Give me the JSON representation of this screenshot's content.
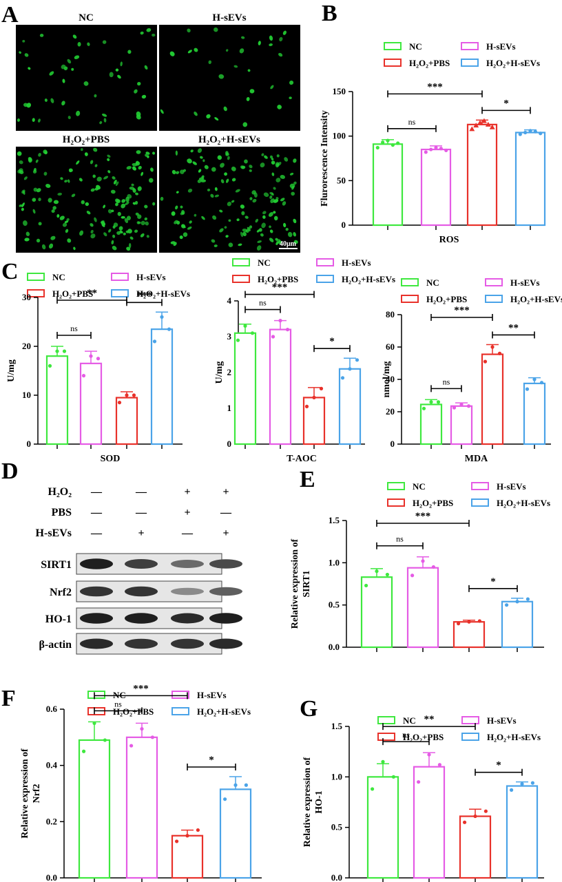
{
  "panel_letters": [
    "A",
    "B",
    "C",
    "D",
    "E",
    "F",
    "G"
  ],
  "colors": {
    "NC": "#3EE83E",
    "H-sEVs": "#E55BE5",
    "H2O2+PBS": "#E8312A",
    "H2O2+H-sEVs": "#4AA3E8",
    "cell": "#22cc33"
  },
  "legend": [
    {
      "key": "NC",
      "label": "NC"
    },
    {
      "key": "H-sEVs",
      "label": "H-sEVs"
    },
    {
      "key": "H2O2+PBS",
      "label": "H₂O₂+PBS"
    },
    {
      "key": "H2O2+H-sEVs",
      "label": "H₂O₂+H-sEVs"
    }
  ],
  "panel_a": {
    "labels": [
      "NC",
      "H-sEVs",
      "H₂O₂+PBS",
      "H₂O₂+H-sEVs"
    ],
    "scale_bar": "40μm"
  },
  "panel_d": {
    "conditions": [
      {
        "label": "H₂O₂",
        "signs": [
          "—",
          "—",
          "+",
          "+"
        ]
      },
      {
        "label": "PBS",
        "signs": [
          "—",
          "—",
          "+",
          "—"
        ]
      },
      {
        "label": "H-sEVs",
        "signs": [
          "—",
          "+",
          "—",
          "+"
        ]
      }
    ],
    "bands": [
      {
        "label": "SIRT1",
        "intensity": [
          0.95,
          0.8,
          0.6,
          0.75
        ]
      },
      {
        "label": "Nrf2",
        "intensity": [
          0.85,
          0.85,
          0.45,
          0.65
        ]
      },
      {
        "label": "HO-1",
        "intensity": [
          0.95,
          0.95,
          0.9,
          0.95
        ]
      },
      {
        "label": "β-actin",
        "intensity": [
          0.9,
          0.85,
          0.85,
          0.9
        ]
      }
    ]
  },
  "chart_data": [
    {
      "panel": "B",
      "type": "bar",
      "categories": [
        "NC",
        "H-sEVs",
        "H2O2+PBS",
        "H2O2+H-sEVs"
      ],
      "xlabel": "ROS",
      "ylabel": "Flurorescence Intensity",
      "ylim": [
        0,
        150
      ],
      "yticks": [
        "0",
        "50",
        "100",
        "150"
      ],
      "values": [
        91,
        85,
        113,
        104
      ],
      "errors": [
        5,
        4,
        5,
        3
      ],
      "points": [
        [
          87,
          93,
          95,
          90,
          92
        ],
        [
          82,
          85,
          87,
          86,
          84
        ],
        [
          108,
          112,
          115,
          117,
          113,
          110
        ],
        [
          102,
          104,
          106,
          105,
          103
        ]
      ],
      "significance": [
        {
          "from": 0,
          "to": 1,
          "label": "ns"
        },
        {
          "from": 0,
          "to": 2,
          "label": "***"
        },
        {
          "from": 2,
          "to": 3,
          "label": "*"
        }
      ]
    },
    {
      "panel": "C1",
      "type": "bar",
      "categories": [
        "NC",
        "H-sEVs",
        "H2O2+PBS",
        "H2O2+H-sEVs"
      ],
      "xlabel": "SOD",
      "ylabel": "U/mg",
      "ylim": [
        0,
        30
      ],
      "yticks": [
        "0",
        "10",
        "20",
        "30"
      ],
      "values": [
        18,
        16.5,
        9.5,
        23.5
      ],
      "errors": [
        2,
        2.5,
        1.2,
        3.5
      ],
      "points": [
        [
          16,
          19,
          19
        ],
        [
          14,
          18,
          17.5
        ],
        [
          8.5,
          10,
          10
        ],
        [
          21,
          26,
          23.5
        ]
      ],
      "significance": [
        {
          "from": 0,
          "to": 1,
          "label": "ns"
        },
        {
          "from": 0,
          "to": 2,
          "label": "**"
        },
        {
          "from": 2,
          "to": 3,
          "label": "***"
        }
      ]
    },
    {
      "panel": "C2",
      "type": "bar",
      "categories": [
        "NC",
        "H-sEVs",
        "H2O2+PBS",
        "H2O2+H-sEVs"
      ],
      "xlabel": "T-AOC",
      "ylabel": "U/mg",
      "ylim": [
        0,
        4
      ],
      "yticks": [
        "0",
        "1",
        "2",
        "3",
        "4"
      ],
      "values": [
        3.1,
        3.2,
        1.3,
        2.1
      ],
      "errors": [
        0.25,
        0.25,
        0.28,
        0.3
      ],
      "points": [
        [
          2.9,
          3.3,
          3.1
        ],
        [
          3.0,
          3.45,
          3.2
        ],
        [
          1.05,
          1.3,
          1.55
        ],
        [
          1.85,
          2.1,
          2.35
        ]
      ],
      "significance": [
        {
          "from": 0,
          "to": 1,
          "label": "ns"
        },
        {
          "from": 0,
          "to": 2,
          "label": "***"
        },
        {
          "from": 2,
          "to": 3,
          "label": "*"
        }
      ]
    },
    {
      "panel": "C3",
      "type": "bar",
      "categories": [
        "NC",
        "H-sEVs",
        "H2O2+PBS",
        "H2O2+H-sEVs"
      ],
      "xlabel": "MDA",
      "ylabel": "nmol/mg",
      "ylim": [
        0,
        80
      ],
      "yticks": [
        "0",
        "20",
        "40",
        "60",
        "80"
      ],
      "values": [
        24.5,
        23.5,
        55.5,
        37.5
      ],
      "errors": [
        3,
        2,
        6,
        3.5
      ],
      "points": [
        [
          22,
          26,
          26
        ],
        [
          22.5,
          24.5,
          23.5
        ],
        [
          51,
          60,
          56
        ],
        [
          34,
          40,
          38
        ]
      ],
      "significance": [
        {
          "from": 0,
          "to": 1,
          "label": "ns"
        },
        {
          "from": 0,
          "to": 2,
          "label": "***"
        },
        {
          "from": 2,
          "to": 3,
          "label": "**"
        }
      ]
    },
    {
      "panel": "E",
      "type": "bar",
      "categories": [
        "NC",
        "H-sEVs",
        "H2O2+PBS",
        "H2O2+H-sEVs"
      ],
      "xlabel": "",
      "ylabel": "Relative expression of SIRT1",
      "ylim": [
        0,
        1.5
      ],
      "yticks": [
        "0.0",
        "0.5",
        "1.0",
        "1.5"
      ],
      "values": [
        0.83,
        0.94,
        0.3,
        0.54
      ],
      "errors": [
        0.1,
        0.13,
        0.02,
        0.04
      ],
      "points": [
        [
          0.73,
          0.9,
          0.86
        ],
        [
          0.85,
          1.02,
          0.95
        ],
        [
          0.28,
          0.3,
          0.31
        ],
        [
          0.5,
          0.54,
          0.57
        ]
      ],
      "significance": [
        {
          "from": 0,
          "to": 1,
          "label": "ns"
        },
        {
          "from": 0,
          "to": 2,
          "label": "***"
        },
        {
          "from": 2,
          "to": 3,
          "label": "*"
        }
      ]
    },
    {
      "panel": "F",
      "type": "bar",
      "categories": [
        "NC",
        "H-sEVs",
        "H2O2+PBS",
        "H2O2+H-sEVs"
      ],
      "xlabel": "",
      "ylabel": "Relative expression of Nrf2",
      "ylim": [
        0,
        0.6
      ],
      "yticks": [
        "0.0",
        "0.2",
        "0.4",
        "0.6"
      ],
      "values": [
        0.49,
        0.5,
        0.15,
        0.315
      ],
      "errors": [
        0.065,
        0.05,
        0.02,
        0.045
      ],
      "points": [
        [
          0.45,
          0.55,
          0.49
        ],
        [
          0.47,
          0.53,
          0.5
        ],
        [
          0.13,
          0.15,
          0.17
        ],
        [
          0.28,
          0.33,
          0.33
        ]
      ],
      "significance": [
        {
          "from": 0,
          "to": 1,
          "label": "ns"
        },
        {
          "from": 0,
          "to": 2,
          "label": "***"
        },
        {
          "from": 2,
          "to": 3,
          "label": "*"
        }
      ]
    },
    {
      "panel": "G",
      "type": "bar",
      "categories": [
        "NC",
        "H-sEVs",
        "H2O2+PBS",
        "H2O2+H-sEVs"
      ],
      "xlabel": "",
      "ylabel": "Relative expression of HO-1",
      "ylim": [
        0,
        1.5
      ],
      "yticks": [
        "0.0",
        "0.5",
        "1.0",
        "1.5"
      ],
      "values": [
        1.0,
        1.1,
        0.61,
        0.91
      ],
      "errors": [
        0.13,
        0.14,
        0.07,
        0.04
      ],
      "points": [
        [
          0.88,
          1.15,
          1.0
        ],
        [
          0.95,
          1.22,
          1.12
        ],
        [
          0.55,
          0.61,
          0.66
        ],
        [
          0.87,
          0.93,
          0.94
        ]
      ],
      "significance": [
        {
          "from": 0,
          "to": 1,
          "label": "ns"
        },
        {
          "from": 0,
          "to": 2,
          "label": "**"
        },
        {
          "from": 2,
          "to": 3,
          "label": "*"
        }
      ]
    }
  ]
}
